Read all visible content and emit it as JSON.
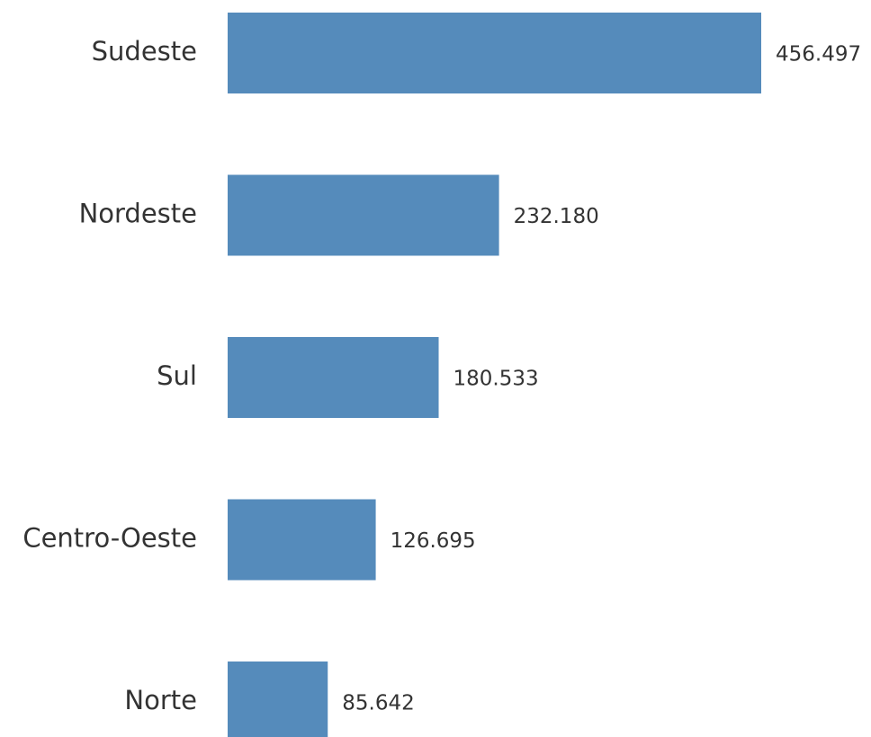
{
  "chart_data": {
    "type": "barh",
    "categories": [
      "Sudeste",
      "Nordeste",
      "Sul",
      "Centro-Oeste",
      "Norte"
    ],
    "values": [
      456497,
      232180,
      180533,
      126695,
      85642
    ],
    "value_labels": [
      "456.497",
      "232.180",
      "180.533",
      "126.695",
      "85.642"
    ],
    "color": "#558bbb"
  }
}
